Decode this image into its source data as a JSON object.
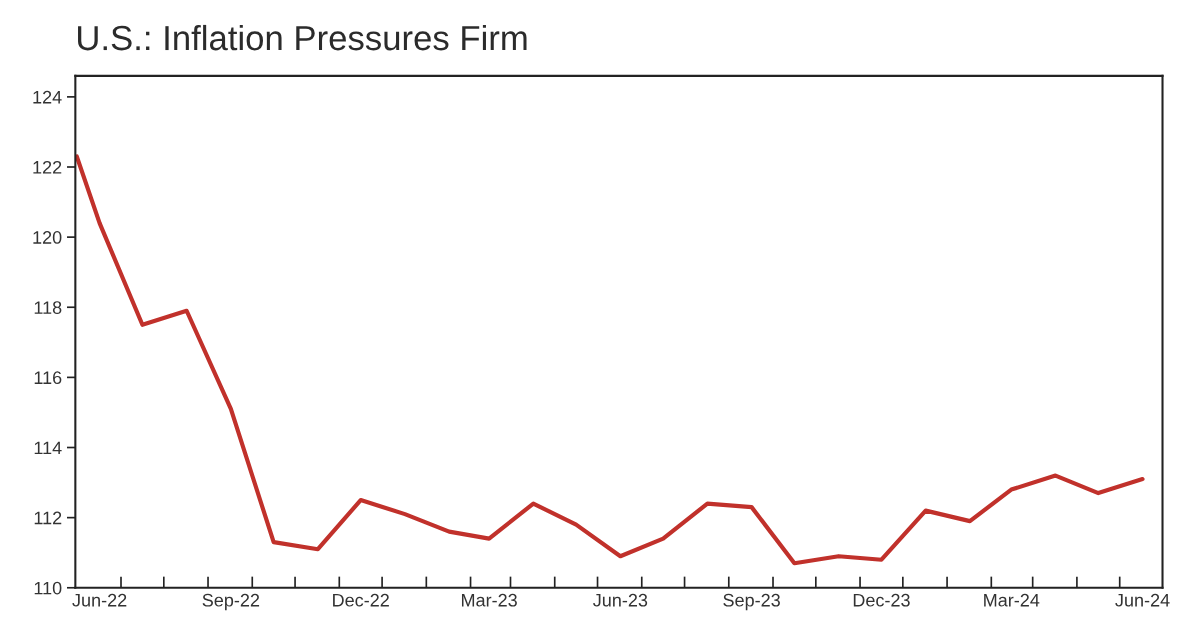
{
  "chart_data": {
    "type": "line",
    "title": "U.S.: Inflation Pressures Firm",
    "x": [
      "2022-05-16",
      "2022-06",
      "2022-07",
      "2022-08",
      "2022-09",
      "2022-10",
      "2022-11",
      "2022-12",
      "2023-01",
      "2023-02",
      "2023-03",
      "2023-04",
      "2023-05",
      "2023-06",
      "2023-07",
      "2023-08",
      "2023-09",
      "2023-10",
      "2023-11",
      "2023-12",
      "2024-01",
      "2024-02",
      "2024-03",
      "2024-04",
      "2024-05",
      "2024-06"
    ],
    "series": [
      {
        "color": "#c1312b",
        "values": [
          122.3,
          120.4,
          117.5,
          117.9,
          115.1,
          111.3,
          111.1,
          112.5,
          112.1,
          111.6,
          111.4,
          112.4,
          111.8,
          110.9,
          111.4,
          112.4,
          112.3,
          110.7,
          110.9,
          110.8,
          112.2,
          111.9,
          112.8,
          113.2,
          112.7,
          113.1
        ]
      }
    ],
    "xlim": [
      "2022-05-15",
      "2024-06-15"
    ],
    "xticks": [
      {
        "value": "2022-06",
        "label": "Jun-22"
      },
      {
        "value": "2022-09",
        "label": "Sep-22"
      },
      {
        "value": "2022-12",
        "label": "Dec-22"
      },
      {
        "value": "2023-03",
        "label": "Mar-23"
      },
      {
        "value": "2023-06",
        "label": "Jun-23"
      },
      {
        "value": "2023-09",
        "label": "Sep-23"
      },
      {
        "value": "2023-12",
        "label": "Dec-23"
      },
      {
        "value": "2024-03",
        "label": "Mar-24"
      },
      {
        "value": "2024-06",
        "label": "Jun-24"
      },
      {
        "value": "2022-06-16",
        "label": null
      },
      {
        "value": "2022-07-16",
        "label": null
      },
      {
        "value": "2022-08-16",
        "label": null
      },
      {
        "value": "2022-09-16",
        "label": null
      },
      {
        "value": "2022-10-16",
        "label": null
      },
      {
        "value": "2022-11-16",
        "label": null
      },
      {
        "value": "2022-12-16",
        "label": null
      },
      {
        "value": "2023-01-16",
        "label": null
      },
      {
        "value": "2023-02-16",
        "label": null
      },
      {
        "value": "2023-03-16",
        "label": null
      },
      {
        "value": "2023-04-16",
        "label": null
      },
      {
        "value": "2023-05-16",
        "label": null
      },
      {
        "value": "2023-06-16",
        "label": null
      },
      {
        "value": "2023-07-16",
        "label": null
      },
      {
        "value": "2023-08-16",
        "label": null
      },
      {
        "value": "2023-09-16",
        "label": null
      },
      {
        "value": "2023-10-16",
        "label": null
      },
      {
        "value": "2023-11-16",
        "label": null
      },
      {
        "value": "2023-12-16",
        "label": null
      },
      {
        "value": "2024-01-16",
        "label": null
      },
      {
        "value": "2024-02-16",
        "label": null
      },
      {
        "value": "2024-03-16",
        "label": null
      },
      {
        "value": "2024-04-16",
        "label": null
      },
      {
        "value": "2024-05-16",
        "label": null
      }
    ],
    "ylim": [
      110,
      124.6
    ],
    "yticks": [
      110,
      112,
      114,
      116,
      118,
      120,
      122,
      124
    ],
    "grid": false,
    "marker": "none",
    "line_style": "solid"
  }
}
